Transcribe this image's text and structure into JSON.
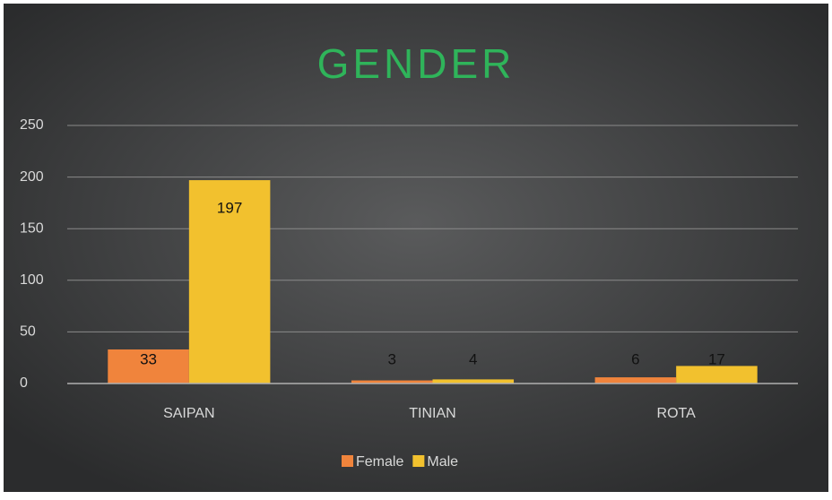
{
  "chart_data": {
    "type": "bar",
    "title": "GENDER",
    "categories": [
      "SAIPAN",
      "TINIAN",
      "ROTA"
    ],
    "series": [
      {
        "name": "Female",
        "color": "#f0843c",
        "values": [
          33,
          3,
          6
        ]
      },
      {
        "name": "Male",
        "color": "#f2c12e",
        "values": [
          197,
          4,
          17
        ]
      }
    ],
    "ylim": [
      0,
      250
    ],
    "yticks": [
      0,
      50,
      100,
      150,
      200,
      250
    ],
    "grid": true,
    "legend": "bottom"
  }
}
